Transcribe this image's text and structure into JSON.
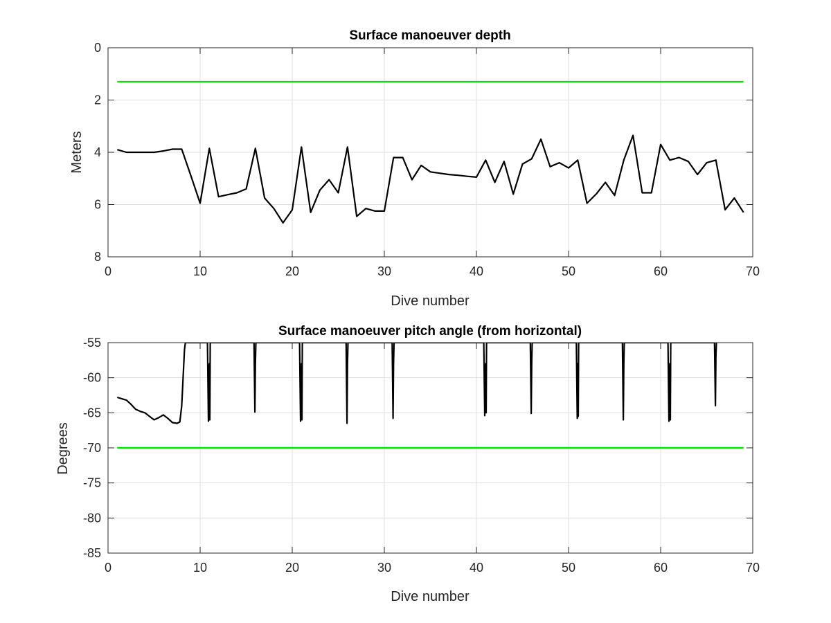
{
  "chart_data": [
    {
      "type": "line",
      "title": "Surface manoeuver depth",
      "xlabel": "Dive number",
      "ylabel": "Meters",
      "xlim": [
        0,
        70
      ],
      "ylim": [
        8,
        0
      ],
      "y_reversed": true,
      "grid": true,
      "xticks": [
        "0",
        "10",
        "20",
        "30",
        "40",
        "50",
        "60",
        "70"
      ],
      "yticks": [
        "0",
        "2",
        "4",
        "6",
        "8"
      ],
      "x": [
        1,
        2,
        3,
        4,
        5,
        6,
        7,
        8,
        9,
        10,
        11,
        12,
        13,
        14,
        15,
        16,
        17,
        18,
        19,
        20,
        21,
        22,
        23,
        24,
        25,
        26,
        27,
        28,
        29,
        30,
        31,
        32,
        33,
        34,
        35,
        36,
        37,
        38,
        39,
        40,
        41,
        42,
        43,
        44,
        45,
        46,
        47,
        48,
        49,
        50,
        51,
        52,
        53,
        54,
        55,
        56,
        57,
        58,
        59,
        60,
        61,
        62,
        63,
        64,
        65,
        66,
        67,
        68,
        69
      ],
      "series": [
        {
          "color": "#000000",
          "values": [
            3.9,
            4.0,
            4.0,
            4.0,
            4.0,
            3.95,
            3.88,
            3.88,
            4.9,
            5.95,
            3.85,
            5.7,
            5.62,
            5.55,
            5.4,
            3.85,
            5.75,
            6.15,
            6.7,
            6.2,
            3.8,
            6.3,
            5.45,
            5.05,
            5.55,
            3.8,
            6.45,
            6.15,
            6.25,
            6.25,
            4.2,
            4.2,
            5.05,
            4.5,
            4.75,
            4.8,
            4.85,
            4.88,
            4.92,
            4.95,
            4.3,
            5.15,
            4.35,
            5.6,
            4.45,
            4.25,
            3.5,
            4.55,
            4.4,
            4.6,
            4.3,
            5.95,
            5.6,
            5.15,
            5.65,
            4.3,
            3.35,
            5.55,
            5.55,
            3.7,
            4.3,
            4.2,
            4.35,
            4.85,
            4.4,
            4.3,
            6.2,
            5.75,
            6.3
          ]
        },
        {
          "color": "#00e000",
          "values": [
            1.3,
            1.3,
            1.3,
            1.3,
            1.3,
            1.3,
            1.3,
            1.3,
            1.3,
            1.3,
            1.3,
            1.3,
            1.3,
            1.3,
            1.3,
            1.3,
            1.3,
            1.3,
            1.3,
            1.3,
            1.3,
            1.3,
            1.3,
            1.3,
            1.3,
            1.3,
            1.3,
            1.3,
            1.3,
            1.3,
            1.3,
            1.3,
            1.3,
            1.3,
            1.3,
            1.3,
            1.3,
            1.3,
            1.3,
            1.3,
            1.3,
            1.3,
            1.3,
            1.3,
            1.3,
            1.3,
            1.3,
            1.3,
            1.3,
            1.3,
            1.3,
            1.3,
            1.3,
            1.3,
            1.3,
            1.3,
            1.3,
            1.3,
            1.3,
            1.3,
            1.3,
            1.3,
            1.3,
            1.3,
            1.3,
            1.3,
            1.3,
            1.3,
            1.3
          ]
        }
      ]
    },
    {
      "type": "line",
      "title": "Surface manoeuver pitch angle (from horizontal)",
      "xlabel": "Dive number",
      "ylabel": "Degrees",
      "xlim": [
        0,
        70
      ],
      "ylim": [
        -85,
        -55
      ],
      "grid": true,
      "xticks": [
        "0",
        "10",
        "20",
        "30",
        "40",
        "50",
        "60",
        "70"
      ],
      "yticks": [
        "-55",
        "-60",
        "-65",
        "-70",
        "-75",
        "-80",
        "-85"
      ],
      "series": [
        {
          "color": "#000000",
          "x": [
            1.0,
            1.5,
            2.0,
            2.5,
            3.0,
            3.5,
            4.0,
            4.5,
            5.0,
            5.5,
            6.0,
            6.5,
            7.0,
            7.5,
            7.8,
            8.0,
            8.15,
            8.3,
            8.4,
            10.8,
            10.9,
            11.0,
            11.05,
            11.1,
            15.85,
            15.95,
            16.0,
            16.05,
            20.8,
            20.9,
            21.0,
            21.05,
            21.1,
            25.85,
            25.95,
            26.0,
            26.05,
            30.85,
            30.95,
            31.0,
            31.05,
            40.8,
            40.9,
            41.0,
            41.05,
            41.1,
            45.85,
            45.95,
            46.0,
            46.05,
            50.85,
            50.95,
            51.0,
            51.05,
            51.1,
            55.85,
            55.95,
            56.0,
            56.05,
            60.8,
            60.9,
            61.0,
            61.05,
            61.1,
            65.85,
            65.95,
            66.0,
            66.05
          ],
          "values": [
            -62.8,
            -63.0,
            -63.2,
            -63.8,
            -64.5,
            -64.8,
            -65.0,
            -65.5,
            -66.0,
            -65.7,
            -65.3,
            -65.8,
            -66.4,
            -66.5,
            -66.3,
            -64.0,
            -60.0,
            -56.0,
            -55.0,
            -55.0,
            -66.2,
            -58.0,
            -66.0,
            -55.0,
            -55.0,
            -64.9,
            -58.0,
            -55.0,
            -55.0,
            -66.2,
            -58.0,
            -66.0,
            -55.0,
            -55.0,
            -66.5,
            -58.0,
            -55.0,
            -55.0,
            -65.8,
            -58.0,
            -55.0,
            -55.0,
            -65.4,
            -58.0,
            -65.0,
            -55.0,
            -55.0,
            -65.1,
            -58.0,
            -55.0,
            -55.0,
            -65.8,
            -58.0,
            -65.5,
            -55.0,
            -55.0,
            -66.0,
            -58.0,
            -55.0,
            -55.0,
            -66.2,
            -58.0,
            -66.0,
            -55.0,
            -55.0,
            -64.0,
            -57.0,
            -55.0
          ]
        },
        {
          "color": "#00e000",
          "x": [
            1,
            69
          ],
          "values": [
            -70,
            -70
          ]
        }
      ]
    }
  ]
}
